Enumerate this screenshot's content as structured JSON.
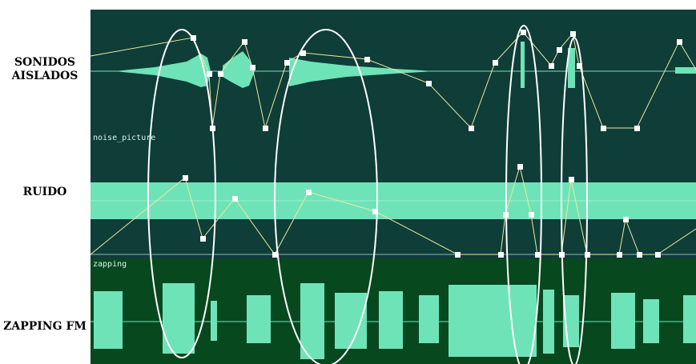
{
  "tracks": [
    {
      "label_line1": "SONIDOS",
      "label_line2": "AISLADOS",
      "clip_name": ""
    },
    {
      "label_line1": "RUIDO",
      "label_line2": "",
      "clip_name": "noise_picture"
    },
    {
      "label_line1": "ZAPPING FM",
      "label_line2": "",
      "clip_name": "zapping"
    }
  ],
  "colors": {
    "track_bg": "#0f3d38",
    "zapping_bg": "#07481f",
    "waveform": "#6fe3b8",
    "envelope_line": "#e9e9a0",
    "envelope_node": "#ffffff",
    "ellipse": "#ffffff"
  }
}
